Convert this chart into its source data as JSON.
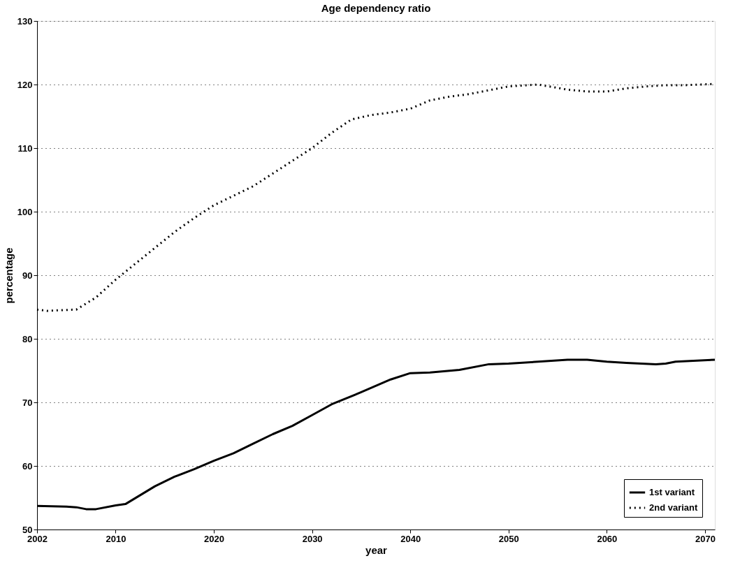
{
  "chart_data": {
    "type": "line",
    "title": "Age dependency ratio",
    "xlabel": "year",
    "ylabel": "percentage",
    "xlim": [
      2002,
      2071
    ],
    "xticks": [
      2002,
      2010,
      2020,
      2030,
      2040,
      2050,
      2060,
      2070
    ],
    "ylim": [
      50,
      130
    ],
    "yticks": [
      50,
      60,
      70,
      80,
      90,
      100,
      110,
      120,
      130
    ],
    "grid": "y",
    "legend": "bottom right",
    "marker": "none",
    "series": [
      {
        "name": "1st variant",
        "color": "#000000",
        "line_style": "solid",
        "x": [
          2002,
          2005,
          2006,
          2007,
          2008,
          2010,
          2011,
          2014,
          2016,
          2018,
          2020,
          2022,
          2024,
          2026,
          2028,
          2030,
          2032,
          2035,
          2038,
          2040,
          2042,
          2045,
          2048,
          2050,
          2053,
          2056,
          2058,
          2060,
          2062,
          2065,
          2066,
          2067,
          2071
        ],
        "values": [
          53.7,
          53.6,
          53.5,
          53.2,
          53.2,
          53.8,
          54.0,
          56.8,
          58.3,
          59.5,
          60.8,
          62.0,
          63.5,
          65.0,
          66.3,
          68.0,
          69.7,
          71.6,
          73.6,
          74.6,
          74.7,
          75.1,
          76.0,
          76.1,
          76.4,
          76.7,
          76.7,
          76.4,
          76.2,
          76.0,
          76.1,
          76.4,
          76.7
        ]
      },
      {
        "name": "2nd variant",
        "color": "#000000",
        "line_style": "dotted",
        "x": [
          2002,
          2003,
          2006,
          2008,
          2010,
          2012,
          2014,
          2016,
          2018,
          2020,
          2022,
          2024,
          2026,
          2028,
          2030,
          2032,
          2034,
          2036,
          2038,
          2040,
          2042,
          2044,
          2046,
          2048,
          2050,
          2053,
          2056,
          2058,
          2060,
          2062,
          2064,
          2066,
          2068,
          2071
        ],
        "values": [
          84.6,
          84.4,
          84.6,
          86.5,
          89.3,
          91.8,
          94.3,
          96.8,
          99.0,
          101.0,
          102.5,
          104.0,
          106.0,
          108.0,
          110.0,
          112.4,
          114.5,
          115.2,
          115.6,
          116.2,
          117.5,
          118.1,
          118.5,
          119.1,
          119.7,
          120.0,
          119.2,
          118.9,
          118.9,
          119.4,
          119.7,
          119.9,
          119.9,
          120.1
        ]
      }
    ]
  }
}
